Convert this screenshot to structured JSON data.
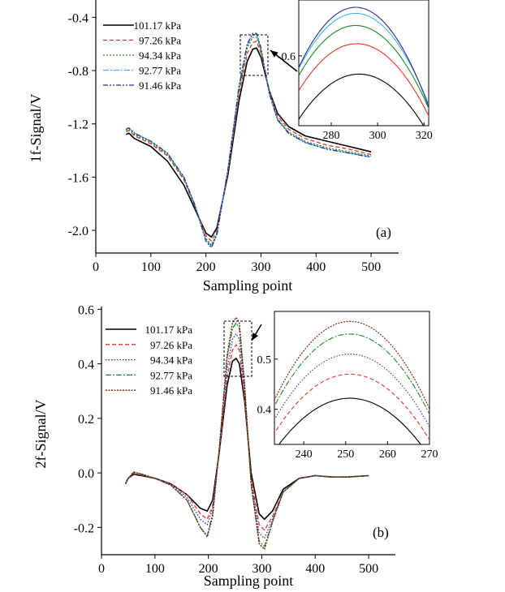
{
  "chart_data": [
    {
      "panel_label": "(a)",
      "type": "line",
      "xlabel": "Sampling point",
      "ylabel": "1f-Signal/V",
      "xlim": [
        0,
        550
      ],
      "ylim": [
        -2.17,
        -0.27
      ],
      "xticks": [
        0,
        100,
        200,
        300,
        400,
        500
      ],
      "yticks": [
        -2.0,
        -1.6,
        -1.2,
        -0.8,
        -0.4
      ],
      "ytick_labels": [
        "-2.0",
        "-1.6",
        "-1.2",
        "-0.8",
        "-0.4"
      ],
      "legend_position": "top-left",
      "series": [
        {
          "name": "101.17 kPa",
          "color": "#000000",
          "dash": "",
          "width": 1.6,
          "bump": 0.08,
          "peakShift": 0.0,
          "x": [
            55,
            60,
            70,
            100,
            130,
            160,
            180,
            200,
            210,
            220,
            240,
            260,
            275,
            285,
            292,
            300,
            315,
            330,
            350,
            380,
            420,
            460,
            500
          ],
          "y": [
            -1.28,
            -1.27,
            -1.31,
            -1.37,
            -1.48,
            -1.66,
            -1.84,
            -2.02,
            -2.05,
            -1.98,
            -1.58,
            -1.03,
            -0.73,
            -0.64,
            -0.63,
            -0.7,
            -0.95,
            -1.12,
            -1.22,
            -1.29,
            -1.33,
            -1.37,
            -1.41
          ]
        },
        {
          "name": "97.26 kPa",
          "color": "#e8352a",
          "dash": "5,3",
          "width": 1.3,
          "bump": 0.0,
          "peakShift": 0.015,
          "x": [
            55,
            60,
            70,
            100,
            130,
            160,
            180,
            200,
            210,
            220,
            240,
            260,
            275,
            285,
            292,
            300,
            315,
            330,
            350,
            380,
            420,
            460,
            500
          ],
          "y": [
            -1.26,
            -1.25,
            -1.29,
            -1.35,
            -1.44,
            -1.62,
            -1.82,
            -2.04,
            -2.08,
            -2.0,
            -1.56,
            -0.98,
            -0.67,
            -0.59,
            -0.58,
            -0.67,
            -0.95,
            -1.14,
            -1.24,
            -1.31,
            -1.36,
            -1.39,
            -1.43
          ]
        },
        {
          "name": "94.34 kPa",
          "color": "#1a8a2a",
          "dash": "2,2",
          "width": 1.3,
          "bump": 0.0,
          "peakShift": 0.03,
          "x": [
            55,
            60,
            70,
            100,
            130,
            160,
            180,
            200,
            210,
            220,
            240,
            260,
            275,
            285,
            292,
            300,
            315,
            330,
            350,
            380,
            420,
            460,
            500
          ],
          "y": [
            -1.25,
            -1.24,
            -1.28,
            -1.34,
            -1.43,
            -1.61,
            -1.82,
            -2.06,
            -2.11,
            -2.02,
            -1.55,
            -0.95,
            -0.63,
            -0.55,
            -0.55,
            -0.65,
            -0.96,
            -1.16,
            -1.26,
            -1.33,
            -1.38,
            -1.41,
            -1.44
          ]
        },
        {
          "name": "92.77 kPa",
          "color": "#3fb4e6",
          "dash": "7,2,2,2",
          "width": 1.3,
          "bump": 0.0,
          "peakShift": 0.04,
          "x": [
            55,
            60,
            70,
            100,
            130,
            160,
            180,
            200,
            210,
            220,
            240,
            260,
            275,
            285,
            292,
            300,
            315,
            330,
            350,
            380,
            420,
            460,
            500
          ],
          "y": [
            -1.24,
            -1.23,
            -1.27,
            -1.33,
            -1.42,
            -1.6,
            -1.81,
            -2.07,
            -2.12,
            -2.03,
            -1.54,
            -0.93,
            -0.61,
            -0.53,
            -0.53,
            -0.64,
            -0.97,
            -1.17,
            -1.27,
            -1.34,
            -1.39,
            -1.42,
            -1.45
          ]
        },
        {
          "name": "91.46 kPa",
          "color": "#2a2f8c",
          "dash": "6,2,2,2,2,2",
          "width": 1.3,
          "bump": 0.0,
          "peakShift": 0.04,
          "x": [
            55,
            60,
            70,
            100,
            130,
            160,
            180,
            200,
            210,
            220,
            240,
            260,
            275,
            285,
            292,
            300,
            315,
            330,
            350,
            380,
            420,
            460,
            500
          ],
          "y": [
            -1.24,
            -1.23,
            -1.27,
            -1.33,
            -1.42,
            -1.6,
            -1.81,
            -2.08,
            -2.13,
            -2.03,
            -1.54,
            -0.92,
            -0.6,
            -0.52,
            -0.52,
            -0.63,
            -0.97,
            -1.17,
            -1.27,
            -1.34,
            -1.39,
            -1.42,
            -1.45
          ]
        }
      ],
      "inset": {
        "xlim": [
          266,
          322
        ],
        "ylim": [
          -0.715,
          -0.508
        ],
        "xticks": [
          280,
          300,
          320
        ],
        "yticks": [
          -0.6
        ],
        "ytick_labels": [
          "-0.6"
        ],
        "peaks": [
          {
            "name": "101.17 kPa",
            "peak_x": 292,
            "peak_y": -0.63
          },
          {
            "name": "97.26 kPa",
            "peak_x": 291,
            "peak_y": -0.58
          },
          {
            "name": "94.34 kPa",
            "peak_x": 290.5,
            "peak_y": -0.55
          },
          {
            "name": "92.77 kPa",
            "peak_x": 290.5,
            "peak_y": -0.53
          },
          {
            "name": "91.46 kPa",
            "peak_x": 290.5,
            "peak_y": -0.52
          }
        ]
      }
    },
    {
      "panel_label": "(b)",
      "type": "line",
      "xlabel": "Sampling point",
      "ylabel": "2f-Signal/V",
      "xlim": [
        0,
        550
      ],
      "ylim": [
        -0.3,
        0.61
      ],
      "xticks": [
        0,
        100,
        200,
        300,
        400,
        500
      ],
      "yticks": [
        -0.2,
        0.0,
        0.2,
        0.4,
        0.6
      ],
      "ytick_labels": [
        "-0.2",
        "0.0",
        "0.2",
        "0.4",
        "0.6"
      ],
      "legend_position": "top-left",
      "series": [
        {
          "name": "101.17 kPa",
          "color": "#000000",
          "dash": "",
          "width": 1.6,
          "bump": 0.0,
          "x": [
            45,
            50,
            60,
            75,
            100,
            130,
            160,
            185,
            198,
            208,
            220,
            235,
            245,
            252,
            258,
            268,
            280,
            295,
            305,
            320,
            340,
            370,
            400,
            430,
            460,
            500
          ],
          "y": [
            -0.04,
            -0.02,
            -0.005,
            -0.01,
            -0.02,
            -0.04,
            -0.08,
            -0.13,
            -0.14,
            -0.1,
            0.07,
            0.32,
            0.41,
            0.42,
            0.4,
            0.26,
            0.0,
            -0.15,
            -0.17,
            -0.14,
            -0.06,
            -0.02,
            -0.01,
            -0.015,
            -0.015,
            -0.01
          ]
        },
        {
          "name": "97.26 kPa",
          "color": "#e8352a",
          "dash": "5,3",
          "width": 1.3,
          "bump": 0.0,
          "x": [
            45,
            50,
            60,
            75,
            100,
            130,
            160,
            185,
            198,
            208,
            220,
            235,
            245,
            252,
            258,
            268,
            280,
            295,
            305,
            320,
            340,
            370,
            400,
            430,
            460,
            500
          ],
          "y": [
            -0.04,
            -0.02,
            -0.003,
            -0.008,
            -0.02,
            -0.04,
            -0.08,
            -0.15,
            -0.17,
            -0.12,
            0.07,
            0.35,
            0.45,
            0.47,
            0.45,
            0.27,
            -0.02,
            -0.19,
            -0.21,
            -0.16,
            -0.07,
            -0.02,
            -0.01,
            -0.015,
            -0.015,
            -0.01
          ]
        },
        {
          "name": "94.34 kPa",
          "color": "#2a2fc8",
          "dash": "1.5,2",
          "width": 1.3,
          "bump": 0.0,
          "x": [
            45,
            50,
            60,
            75,
            100,
            130,
            160,
            185,
            198,
            208,
            220,
            235,
            245,
            252,
            258,
            268,
            280,
            295,
            305,
            320,
            340,
            370,
            400,
            430,
            460,
            500
          ],
          "y": [
            -0.04,
            -0.02,
            0.0,
            -0.006,
            -0.02,
            -0.04,
            -0.09,
            -0.17,
            -0.19,
            -0.13,
            0.08,
            0.38,
            0.49,
            0.51,
            0.49,
            0.29,
            -0.03,
            -0.22,
            -0.24,
            -0.17,
            -0.07,
            -0.02,
            -0.01,
            -0.015,
            -0.015,
            -0.01
          ]
        },
        {
          "name": "92.77 kPa",
          "color": "#1a8a2a",
          "dash": "7,2,2,2",
          "width": 1.3,
          "bump": 0.0,
          "x": [
            45,
            50,
            60,
            75,
            100,
            130,
            160,
            185,
            198,
            208,
            220,
            235,
            245,
            252,
            258,
            268,
            280,
            295,
            305,
            320,
            340,
            370,
            400,
            430,
            460,
            500
          ],
          "y": [
            -0.04,
            -0.02,
            0.002,
            -0.005,
            -0.02,
            -0.045,
            -0.1,
            -0.2,
            -0.23,
            -0.15,
            0.08,
            0.42,
            0.53,
            0.55,
            0.53,
            0.31,
            -0.04,
            -0.25,
            -0.27,
            -0.18,
            -0.07,
            -0.02,
            -0.01,
            -0.015,
            -0.015,
            -0.01
          ]
        },
        {
          "name": "91.46 kPa",
          "color": "#7a1a12",
          "dash": "2,1.5",
          "width": 1.4,
          "bump": 0.0,
          "x": [
            45,
            50,
            60,
            75,
            100,
            130,
            160,
            185,
            198,
            208,
            220,
            235,
            245,
            252,
            258,
            268,
            280,
            295,
            305,
            320,
            340,
            370,
            400,
            430,
            460,
            500
          ],
          "y": [
            -0.04,
            -0.02,
            0.003,
            -0.004,
            -0.02,
            -0.045,
            -0.1,
            -0.2,
            -0.235,
            -0.16,
            0.08,
            0.43,
            0.55,
            0.57,
            0.55,
            0.32,
            -0.04,
            -0.26,
            -0.28,
            -0.18,
            -0.07,
            -0.02,
            -0.01,
            -0.015,
            -0.015,
            -0.01
          ]
        }
      ],
      "inset": {
        "xlim": [
          233,
          270
        ],
        "ylim": [
          0.33,
          0.595
        ],
        "xticks": [
          240,
          250,
          260,
          270
        ],
        "yticks": [
          0.4,
          0.5
        ],
        "ytick_labels": [
          "0.4",
          "0.5"
        ],
        "peaks": [
          {
            "name": "101.17 kPa",
            "peak_x": 251,
            "peak_y": 0.422
          },
          {
            "name": "97.26 kPa",
            "peak_x": 251,
            "peak_y": 0.47
          },
          {
            "name": "94.34 kPa",
            "peak_x": 251,
            "peak_y": 0.51
          },
          {
            "name": "92.77 kPa",
            "peak_x": 251,
            "peak_y": 0.55
          },
          {
            "name": "91.46 kPa",
            "peak_x": 251,
            "peak_y": 0.575
          }
        ]
      }
    }
  ]
}
